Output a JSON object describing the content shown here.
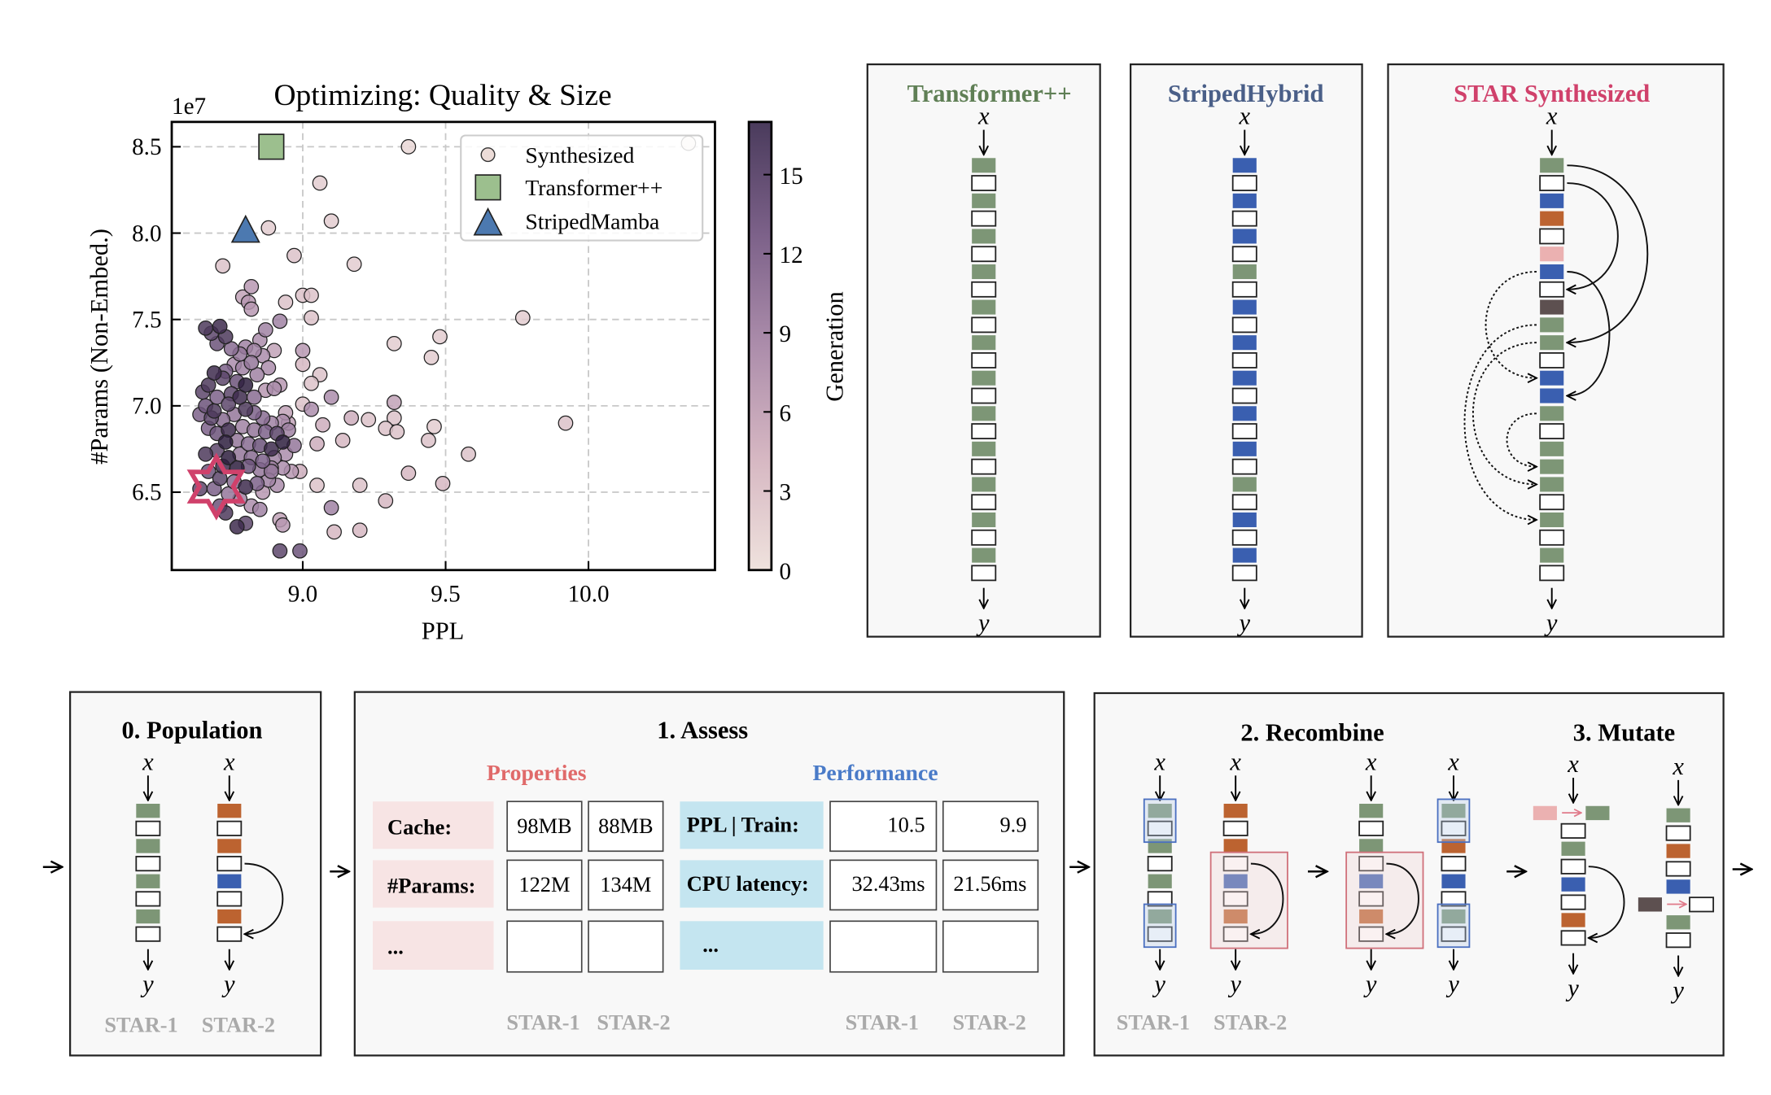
{
  "chart_data": {
    "type": "scatter",
    "title": "Optimizing: Quality & Size",
    "xlabel": "PPL",
    "ylabel": "#Params (Non-Embed.)",
    "y_scale_label": "1e7",
    "xlim": [
      8.54,
      10.44
    ],
    "ylim": [
      6.05,
      8.64
    ],
    "xticks": [
      9.0,
      9.5,
      10.0
    ],
    "xtick_labels": [
      "9.0",
      "9.5",
      "10.0"
    ],
    "yticks": [
      6.5,
      7.0,
      7.5,
      8.0,
      8.5
    ],
    "ytick_labels": [
      "6.5",
      "7.0",
      "7.5",
      "8.0",
      "8.5"
    ],
    "grid": true,
    "legend": {
      "position": "top-right",
      "entries": [
        "Synthesized",
        "Transformer++",
        "StripedMamba"
      ]
    },
    "colorbar": {
      "label": "Generation",
      "range": [
        0,
        17
      ],
      "ticks": [
        0,
        3,
        6,
        9,
        12,
        15
      ],
      "tick_labels": [
        "0",
        "3",
        "6",
        "9",
        "12",
        "15"
      ]
    },
    "colors": {
      "transformer": "#9cbf8e",
      "striped": "#4c79b0",
      "star": "#d0416b"
    },
    "series": [
      {
        "name": "Synthesized",
        "point_format": "[ppl, params_1e7, generation]",
        "points": [
          [
            9.37,
            8.5,
            1
          ],
          [
            10.35,
            8.52,
            0
          ],
          [
            9.06,
            8.29,
            2
          ],
          [
            9.1,
            8.07,
            2
          ],
          [
            8.88,
            8.03,
            2
          ],
          [
            8.97,
            7.87,
            3
          ],
          [
            9.18,
            7.82,
            2
          ],
          [
            8.72,
            7.81,
            3
          ],
          [
            8.82,
            7.69,
            7
          ],
          [
            8.79,
            7.63,
            6
          ],
          [
            8.81,
            7.6,
            7
          ],
          [
            8.82,
            7.56,
            7
          ],
          [
            8.94,
            7.6,
            3
          ],
          [
            9.0,
            7.64,
            3
          ],
          [
            9.03,
            7.64,
            3
          ],
          [
            9.03,
            7.51,
            3
          ],
          [
            9.77,
            7.51,
            2
          ],
          [
            9.48,
            7.4,
            2
          ],
          [
            9.32,
            7.36,
            2
          ],
          [
            9.45,
            7.28,
            2
          ],
          [
            8.92,
            7.49,
            9
          ],
          [
            9.0,
            7.32,
            7
          ],
          [
            9.0,
            7.24,
            4
          ],
          [
            9.06,
            7.18,
            3
          ],
          [
            9.03,
            7.13,
            3
          ],
          [
            9.1,
            7.05,
            8
          ],
          [
            9.32,
            7.02,
            6
          ],
          [
            9.0,
            7.01,
            3
          ],
          [
            9.03,
            6.98,
            8
          ],
          [
            9.17,
            6.93,
            5
          ],
          [
            9.23,
            6.92,
            3
          ],
          [
            9.32,
            6.93,
            3
          ],
          [
            9.29,
            6.87,
            3
          ],
          [
            9.33,
            6.85,
            3
          ],
          [
            9.46,
            6.88,
            2
          ],
          [
            9.44,
            6.8,
            3
          ],
          [
            9.14,
            6.8,
            4
          ],
          [
            9.05,
            6.78,
            5
          ],
          [
            9.92,
            6.9,
            3
          ],
          [
            9.58,
            6.72,
            3
          ],
          [
            9.37,
            6.61,
            4
          ],
          [
            9.49,
            6.55,
            4
          ],
          [
            9.05,
            6.54,
            3
          ],
          [
            9.2,
            6.54,
            3
          ],
          [
            9.29,
            6.45,
            4
          ],
          [
            9.1,
            6.41,
            9
          ],
          [
            9.2,
            6.28,
            4
          ],
          [
            9.11,
            6.27,
            4
          ],
          [
            8.92,
            6.34,
            6
          ],
          [
            8.93,
            6.31,
            7
          ],
          [
            8.92,
            6.16,
            14
          ],
          [
            8.99,
            6.16,
            13
          ],
          [
            8.99,
            6.62,
            5
          ],
          [
            9.07,
            6.89,
            5
          ],
          [
            8.95,
            6.9,
            6
          ],
          [
            8.66,
            7.45,
            15
          ],
          [
            8.68,
            7.42,
            14
          ],
          [
            8.71,
            7.46,
            16
          ],
          [
            8.73,
            7.4,
            15
          ],
          [
            8.7,
            7.36,
            13
          ],
          [
            8.75,
            7.33,
            11
          ],
          [
            8.78,
            7.3,
            10
          ],
          [
            8.8,
            7.34,
            9
          ],
          [
            8.83,
            7.32,
            9
          ],
          [
            8.86,
            7.29,
            8
          ],
          [
            8.82,
            7.25,
            10
          ],
          [
            8.79,
            7.22,
            9
          ],
          [
            8.76,
            7.24,
            8
          ],
          [
            8.73,
            7.2,
            12
          ],
          [
            8.69,
            7.19,
            16
          ],
          [
            8.72,
            7.16,
            14
          ],
          [
            8.67,
            7.12,
            15
          ],
          [
            8.77,
            7.14,
            13
          ],
          [
            8.8,
            7.12,
            17
          ],
          [
            8.84,
            7.18,
            9
          ],
          [
            8.88,
            7.22,
            8
          ],
          [
            8.9,
            7.1,
            8
          ],
          [
            8.87,
            7.09,
            7
          ],
          [
            8.78,
            7.05,
            16
          ],
          [
            8.75,
            7.07,
            14
          ],
          [
            8.7,
            7.05,
            12
          ],
          [
            8.65,
            7.08,
            14
          ],
          [
            8.66,
            7.0,
            13
          ],
          [
            8.64,
            6.95,
            12
          ],
          [
            8.68,
            6.93,
            14
          ],
          [
            8.72,
            6.92,
            11
          ],
          [
            8.76,
            6.95,
            10
          ],
          [
            8.8,
            6.98,
            15
          ],
          [
            8.83,
            6.96,
            12
          ],
          [
            8.86,
            6.93,
            11
          ],
          [
            8.89,
            6.9,
            9
          ],
          [
            8.93,
            6.91,
            8
          ],
          [
            8.95,
            6.86,
            9
          ],
          [
            8.91,
            6.84,
            14
          ],
          [
            8.87,
            6.85,
            12
          ],
          [
            8.83,
            6.86,
            10
          ],
          [
            8.79,
            6.88,
            9
          ],
          [
            8.74,
            6.86,
            16
          ],
          [
            8.7,
            6.84,
            13
          ],
          [
            8.67,
            6.87,
            12
          ],
          [
            8.73,
            6.79,
            17
          ],
          [
            8.77,
            6.8,
            10
          ],
          [
            8.81,
            6.78,
            11
          ],
          [
            8.85,
            6.77,
            13
          ],
          [
            8.89,
            6.75,
            16
          ],
          [
            8.93,
            6.79,
            17
          ],
          [
            8.97,
            6.77,
            10
          ],
          [
            8.94,
            6.72,
            8
          ],
          [
            8.9,
            6.7,
            9
          ],
          [
            8.86,
            6.68,
            12
          ],
          [
            8.82,
            6.7,
            11
          ],
          [
            8.78,
            6.72,
            10
          ],
          [
            8.74,
            6.7,
            17
          ],
          [
            8.7,
            6.74,
            14
          ],
          [
            8.66,
            6.72,
            15
          ],
          [
            8.72,
            6.65,
            16
          ],
          [
            8.77,
            6.64,
            17
          ],
          [
            8.81,
            6.65,
            13
          ],
          [
            8.85,
            6.63,
            10
          ],
          [
            8.89,
            6.64,
            9
          ],
          [
            8.93,
            6.64,
            8
          ],
          [
            8.96,
            6.62,
            7
          ],
          [
            8.88,
            6.57,
            9
          ],
          [
            8.84,
            6.55,
            12
          ],
          [
            8.8,
            6.53,
            16
          ],
          [
            8.76,
            6.56,
            11
          ],
          [
            8.71,
            6.58,
            14
          ],
          [
            8.67,
            6.62,
            13
          ],
          [
            8.69,
            6.52,
            12
          ],
          [
            8.74,
            6.49,
            10
          ],
          [
            8.78,
            6.46,
            9
          ],
          [
            8.82,
            6.42,
            8
          ],
          [
            8.85,
            6.4,
            9
          ],
          [
            8.71,
            6.42,
            13
          ],
          [
            8.73,
            6.38,
            15
          ],
          [
            8.77,
            6.3,
            16
          ],
          [
            8.8,
            6.32,
            14
          ],
          [
            8.86,
            6.5,
            7
          ],
          [
            8.91,
            6.54,
            8
          ],
          [
            8.89,
            6.62,
            10
          ],
          [
            8.64,
            6.52,
            14
          ],
          [
            8.69,
            6.97,
            15
          ],
          [
            8.74,
            7.01,
            14
          ],
          [
            8.83,
            7.05,
            11
          ],
          [
            8.85,
            7.38,
            8
          ],
          [
            8.87,
            7.44,
            9
          ],
          [
            8.9,
            7.32,
            6
          ],
          [
            8.92,
            7.12,
            7
          ],
          [
            8.94,
            6.96,
            6
          ]
        ]
      },
      {
        "name": "Transformer++",
        "marker": "square",
        "points": [
          [
            8.89,
            8.5
          ]
        ]
      },
      {
        "name": "StripedMamba",
        "marker": "triangle",
        "points": [
          [
            8.8,
            8.02
          ]
        ]
      }
    ],
    "highlight": {
      "marker": "star",
      "point": [
        8.65,
        6.5
      ]
    }
  },
  "block_colors": {
    "G": "#7d9676",
    "W": "#ffffff",
    "B": "#3a5fb0",
    "O": "#bc6330",
    "P": "#ebb1b1",
    "D": "#5d5050"
  },
  "architectures": [
    {
      "title": "Transformer++",
      "color": "#5f7f55",
      "sequence": "GWGWGWGWGWGWGWGWGWGWGWGW"
    },
    {
      "title": "StripedHybrid",
      "color": "#4a5f88",
      "sequence": "BWBWBWGWBWBWBWBWBWGWBWBW"
    },
    {
      "title": "STAR Synthesized",
      "color": "#d0416b",
      "sequence": "GWBOWPBWDGGWBBGWGGGWGWGW"
    }
  ],
  "io": {
    "input": "x",
    "output": "y"
  },
  "population": {
    "title": "0. Population",
    "labels": [
      "STAR-1",
      "STAR-2"
    ],
    "sequences": [
      "GWGWGWGW",
      "OWOWBWOW"
    ]
  },
  "assess": {
    "title": "1. Assess",
    "properties_header": "Properties",
    "performance_header": "Performance",
    "properties": [
      {
        "label": "Cache:",
        "values": [
          "98MB",
          "88MB"
        ]
      },
      {
        "label": "#Params:",
        "values": [
          "122M",
          "134M"
        ]
      },
      {
        "label": "...",
        "values": [
          "",
          ""
        ]
      }
    ],
    "performance": [
      {
        "label": "PPL | Train:",
        "values": [
          "10.5",
          "9.9"
        ]
      },
      {
        "label": "CPU latency:",
        "values": [
          "32.43ms",
          "21.56ms"
        ]
      },
      {
        "label": "...",
        "values": [
          "",
          ""
        ]
      }
    ],
    "column_labels": [
      "STAR-1",
      "STAR-2",
      "STAR-1",
      "STAR-2"
    ],
    "properties_color": "#e06a6a",
    "performance_color": "#4a7bc8"
  },
  "recombine": {
    "title": "2. Recombine",
    "labels": [
      "STAR-1",
      "STAR-2"
    ],
    "parents": [
      "GWGWGWGW",
      "OWOWBWOW"
    ],
    "children": [
      "GWGWBWOW",
      "GWOWBWGW"
    ]
  },
  "mutate": {
    "title": "3. Mutate",
    "sequences": [
      "PWGWBWOW",
      "GWOWBDGW"
    ],
    "mutated_to": [
      "G",
      "W"
    ]
  }
}
